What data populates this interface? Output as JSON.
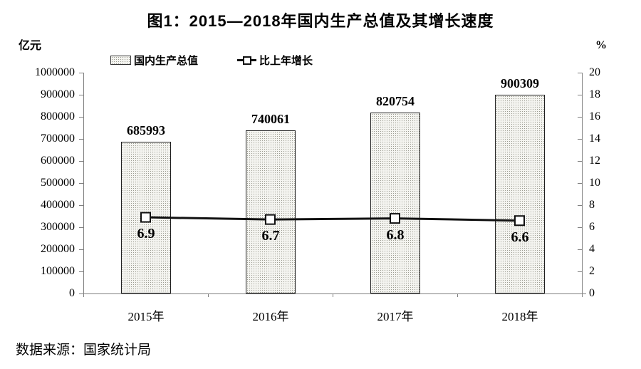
{
  "chart_data": {
    "type": "bar",
    "title": "图1：2015—2018年国内生产总值及其增长速度",
    "categories": [
      "2015年",
      "2016年",
      "2017年",
      "2018年"
    ],
    "series": [
      {
        "name": "国内生产总值",
        "type": "bar",
        "axis": "left",
        "values": [
          685993,
          740061,
          820754,
          900309
        ],
        "labels": [
          "685993",
          "740061",
          "820754",
          "900309"
        ]
      },
      {
        "name": "比上年增长",
        "type": "line",
        "axis": "right",
        "values": [
          6.9,
          6.7,
          6.8,
          6.6
        ],
        "labels": [
          "6.9",
          "6.7",
          "6.8",
          "6.6"
        ]
      }
    ],
    "left_axis": {
      "unit": "亿元",
      "min": 0,
      "max": 1000000,
      "step": 100000,
      "ticks": [
        "0",
        "100000",
        "200000",
        "300000",
        "400000",
        "500000",
        "600000",
        "700000",
        "800000",
        "900000",
        "1000000"
      ]
    },
    "right_axis": {
      "unit": "%",
      "min": 0,
      "max": 20,
      "step": 2,
      "ticks": [
        "0",
        "2",
        "4",
        "6",
        "8",
        "10",
        "12",
        "14",
        "16",
        "18",
        "20"
      ]
    },
    "legend_position": "top",
    "grid": false,
    "source": "数据来源：国家统计局",
    "colors": {
      "bar_fill": "#f4f4f0",
      "bar_dots": "#9a9a90",
      "bar_border": "#1f1f1f",
      "line": "#111111",
      "marker_fill": "#ffffff",
      "axis": "#808080",
      "text": "#000000"
    }
  }
}
